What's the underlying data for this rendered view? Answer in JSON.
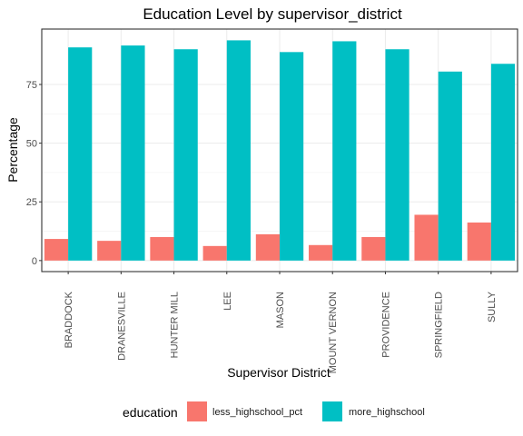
{
  "chart_data": {
    "type": "bar",
    "title": "Education Level by supervisor_district",
    "xlabel": "Supervisor District",
    "ylabel": "Percentage",
    "categories": [
      "BRADDOCK",
      "DRANESVILLE",
      "HUNTER MILL",
      "LEE",
      "MASON",
      "MOUNT VERNON",
      "PROVIDENCE",
      "SPRINGFIELD",
      "SULLY"
    ],
    "series": [
      {
        "name": "less_highschool_pct",
        "color": "#F8766D",
        "values": [
          9.2,
          8.4,
          10.0,
          6.2,
          11.2,
          6.6,
          10.0,
          19.5,
          16.2
        ]
      },
      {
        "name": "more_highschool",
        "color": "#00BFC4",
        "values": [
          90.8,
          91.6,
          90.0,
          93.8,
          88.8,
          93.4,
          90.0,
          80.5,
          83.8
        ]
      }
    ],
    "ylim": [
      -4.7,
      98.6
    ],
    "yticks": [
      0,
      25,
      50,
      75
    ],
    "grid": true,
    "legend": {
      "title": "education",
      "position": "bottom"
    }
  }
}
